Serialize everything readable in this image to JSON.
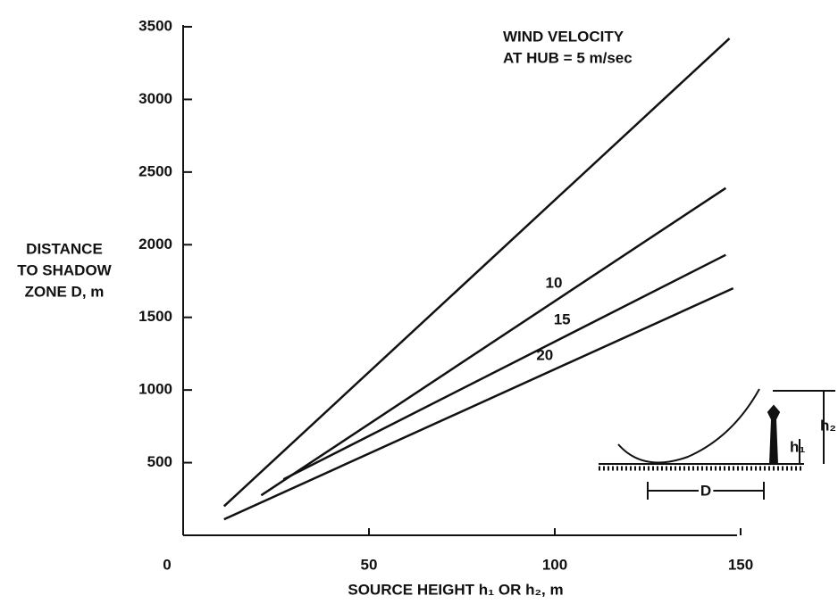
{
  "chart_data": {
    "type": "line",
    "annotation": [
      "WIND VELOCITY",
      "AT HUB = 5 m/sec"
    ],
    "y_label": [
      "DISTANCE",
      "TO SHADOW",
      "ZONE D, m"
    ],
    "x_label": "SOURCE HEIGHT h₁ OR h₂, m",
    "xlim": [
      0,
      150
    ],
    "xticks": [
      0,
      50,
      100,
      150
    ],
    "ylim": [
      0,
      3500
    ],
    "yticks": [
      500,
      1000,
      1500,
      2000,
      2500,
      3000,
      3500
    ],
    "color": "#111111",
    "series": [
      {
        "x": [
          11,
          147
        ],
        "values": [
          200,
          3420
        ]
      },
      {
        "name": "10",
        "x": [
          21,
          146
        ],
        "values": [
          275,
          2390
        ]
      },
      {
        "name": "15",
        "x": [
          27,
          146
        ],
        "values": [
          385,
          1930
        ]
      },
      {
        "name": "20",
        "x": [
          11,
          148
        ],
        "values": [
          110,
          1700
        ]
      }
    ],
    "inset_labels": [
      "h₂",
      "h₁",
      "D"
    ]
  }
}
